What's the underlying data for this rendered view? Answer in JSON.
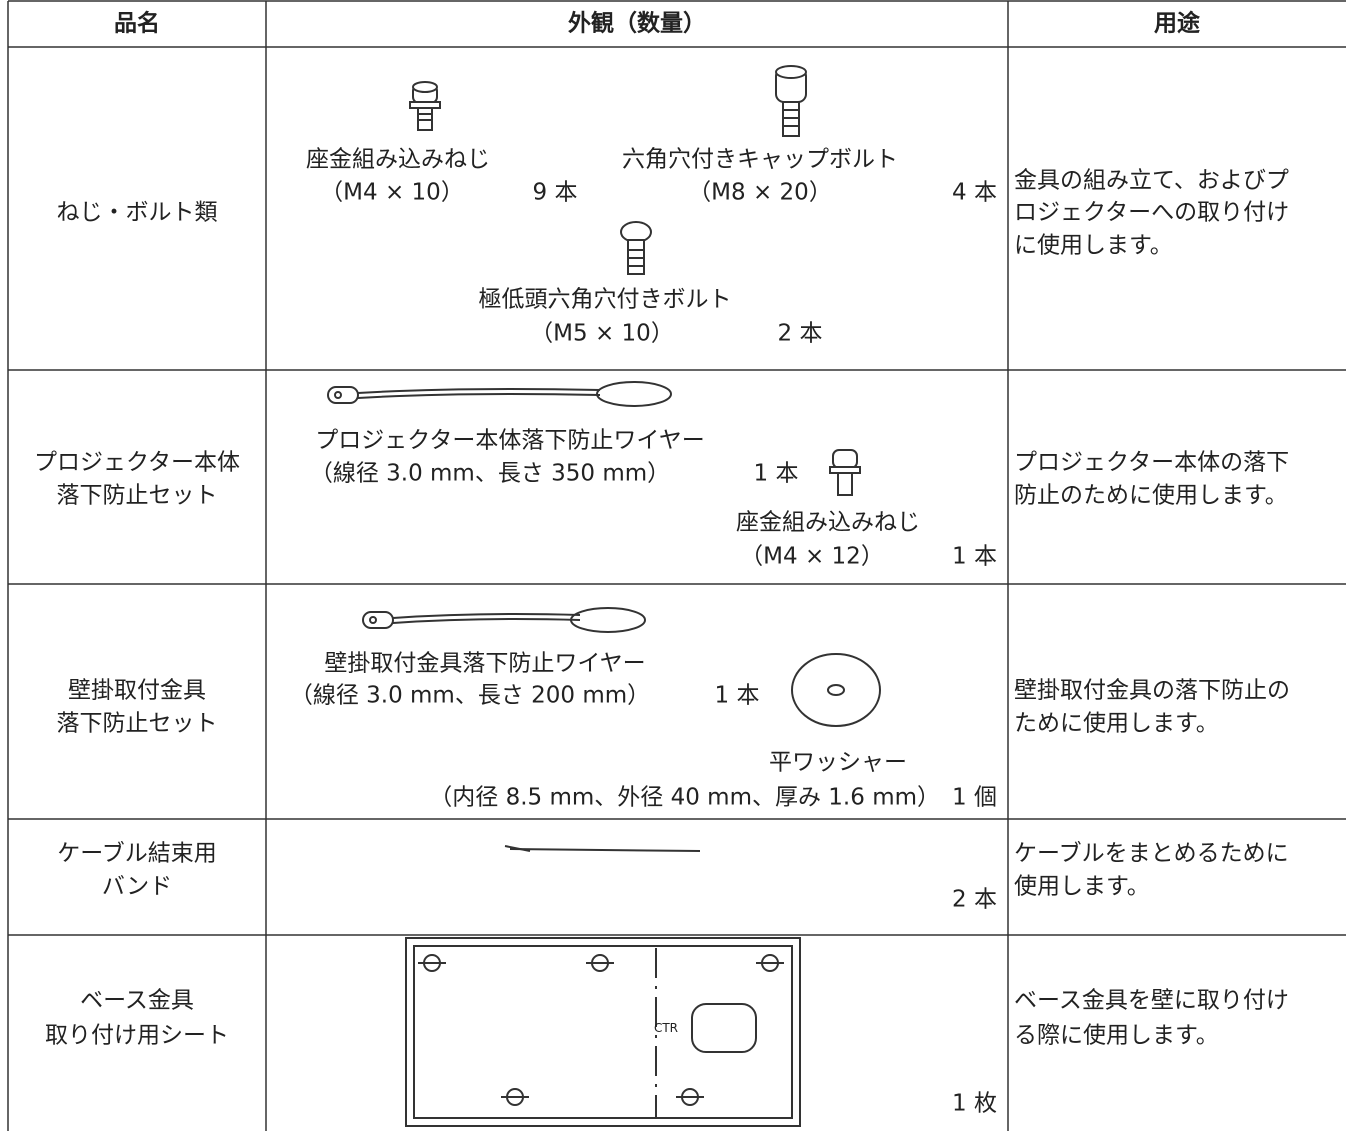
{
  "table": {
    "headers": [
      "品名",
      "外観（数量）",
      "用途"
    ],
    "rows": [
      {
        "name": [
          "ねじ・ボルト類"
        ],
        "items": [
          {
            "name": "座金組み込みねじ",
            "spec": "（M4 × 10）",
            "qty": "9 本"
          },
          {
            "name": "六角穴付きキャップボルト",
            "spec": "（M8 × 20）",
            "qty": "4 本"
          },
          {
            "name": "極低頭六角穴付きボルト",
            "spec": "（M5 × 10）",
            "qty": "2 本"
          }
        ],
        "usage": [
          "金具の組み立て、およびプ",
          "ロジェクターへの取り付け",
          "に使用します。"
        ]
      },
      {
        "name": [
          "プロジェクター本体",
          "落下防止セット"
        ],
        "items": [
          {
            "name": "プロジェクター本体落下防止ワイヤー",
            "spec": "（線径 3.0 mm、長さ 350 mm）",
            "qty": "1 本"
          },
          {
            "name": "座金組み込みねじ",
            "spec": "（M4 × 12）",
            "qty": "1 本"
          }
        ],
        "usage": [
          "プロジェクター本体の落下",
          "防止のために使用します。"
        ]
      },
      {
        "name": [
          "壁掛取付金具",
          "落下防止セット"
        ],
        "items": [
          {
            "name": "壁掛取付金具落下防止ワイヤー",
            "spec": "（線径 3.0 mm、長さ 200 mm）",
            "qty": "1 本"
          },
          {
            "name": "平ワッシャー",
            "spec": "（内径 8.5 mm、外径 40 mm、厚み 1.6 mm）",
            "qty": "1 個"
          }
        ],
        "usage": [
          "壁掛取付金具の落下防止の",
          "ために使用します。"
        ]
      },
      {
        "name": [
          "ケーブル結束用",
          "バンド"
        ],
        "items": [
          {
            "qty": "2 本"
          }
        ],
        "usage": [
          "ケーブルをまとめるために",
          "使用します。"
        ]
      },
      {
        "name": [
          "ベース金具",
          "取り付け用シート"
        ],
        "drawing_label": "CTR",
        "items": [
          {
            "qty": "1 枚"
          }
        ],
        "usage": [
          "ベース金具を壁に取り付け",
          "る際に使用します。"
        ]
      }
    ]
  }
}
